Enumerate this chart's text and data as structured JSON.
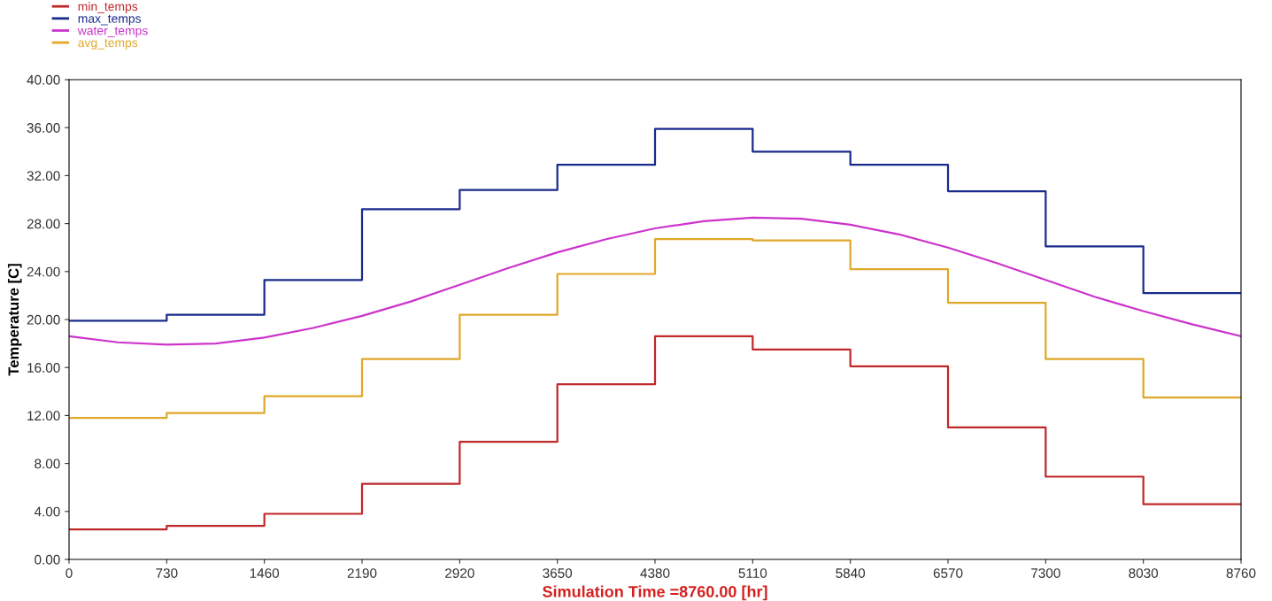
{
  "chart_data": {
    "type": "step",
    "xlabel": "Simulation Time =8760.00 [hr]",
    "ylabel": "Temperature [C]",
    "x": [
      0,
      730,
      1460,
      2190,
      2920,
      3650,
      4380,
      5110,
      5840,
      6570,
      7300,
      8030,
      8760
    ],
    "series": [
      {
        "name": "min_temps",
        "color": "#c0282a",
        "values": [
          2.5,
          2.8,
          3.8,
          6.3,
          9.8,
          14.6,
          18.6,
          17.5,
          16.1,
          11.0,
          6.9,
          4.6,
          4.6
        ]
      },
      {
        "name": "max_temps",
        "color": "#1a2a8c",
        "values": [
          19.9,
          20.4,
          23.3,
          29.2,
          30.8,
          32.9,
          35.9,
          34.0,
          32.9,
          30.7,
          26.1,
          22.2,
          22.2
        ]
      },
      {
        "name": "water_temps",
        "type": "line",
        "color": "#cc33cc",
        "x": [
          0,
          365,
          730,
          1095,
          1460,
          1825,
          2190,
          2555,
          2920,
          3285,
          3650,
          4015,
          4380,
          4745,
          5110,
          5475,
          5840,
          6205,
          6570,
          6935,
          7300,
          7665,
          8030,
          8395,
          8760
        ],
        "values": [
          18.6,
          18.1,
          17.9,
          18.0,
          18.5,
          19.3,
          20.3,
          21.5,
          22.9,
          24.3,
          25.6,
          26.7,
          27.6,
          28.2,
          28.5,
          28.4,
          27.9,
          27.1,
          26.0,
          24.7,
          23.3,
          21.9,
          20.7,
          19.6,
          18.6
        ]
      },
      {
        "name": "avg_temps",
        "color": "#e0a82a",
        "values": [
          11.8,
          12.2,
          13.6,
          16.7,
          20.4,
          23.8,
          26.7,
          26.6,
          24.2,
          21.4,
          16.7,
          13.5,
          13.5
        ]
      }
    ],
    "xlim": [
      0,
      8760
    ],
    "xticks": [
      0,
      730,
      1460,
      2190,
      2920,
      3650,
      4380,
      5110,
      5840,
      6570,
      7300,
      8030,
      8760
    ],
    "ylim": [
      0,
      40
    ],
    "yticks": [
      {
        "value": 0,
        "label": "0.00"
      },
      {
        "value": 4,
        "label": "4.00"
      },
      {
        "value": 8,
        "label": "8.00"
      },
      {
        "value": 12,
        "label": "12.00"
      },
      {
        "value": 16,
        "label": "16.00"
      },
      {
        "value": 20,
        "label": "20.00"
      },
      {
        "value": 24,
        "label": "24.00"
      },
      {
        "value": 28,
        "label": "28.00"
      },
      {
        "value": 32,
        "label": "32.00"
      },
      {
        "value": 36,
        "label": "36.00"
      },
      {
        "value": 40,
        "label": "40.00"
      }
    ],
    "grid": false,
    "legend": "top left",
    "line_style": "solid",
    "marker": "none"
  }
}
